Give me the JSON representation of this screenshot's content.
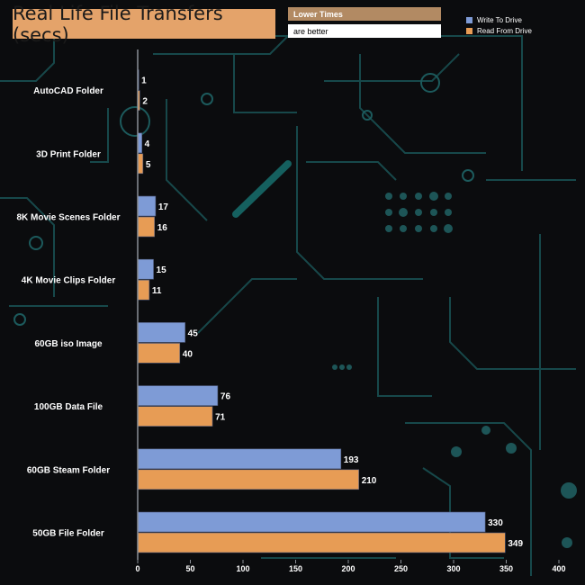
{
  "chart_data": {
    "type": "bar",
    "orientation": "horizontal",
    "title": "Real Life File Transfers (secs)",
    "notes": [
      "Lower Times",
      "are better"
    ],
    "categories": [
      "AutoCAD Folder",
      "3D Print Folder",
      "8K Movie Scenes Folder",
      "4K Movie Clips Folder",
      "60GB iso Image",
      "100GB Data File",
      "60GB Steam Folder",
      "50GB File Folder"
    ],
    "series": [
      {
        "name": "Write To  Drive",
        "color": "#7e9bd6",
        "values": [
          1,
          4,
          17,
          15,
          45,
          76,
          193,
          330
        ]
      },
      {
        "name": "Read From  Drive",
        "color": "#e79c55",
        "values": [
          2,
          5,
          16,
          11,
          40,
          71,
          210,
          349
        ]
      }
    ],
    "x_ticks": [
      "0",
      "50",
      "100",
      "150",
      "200",
      "250",
      "300",
      "350",
      "400"
    ],
    "xlim": [
      0,
      400
    ],
    "legend_position": "top-right",
    "grid": false
  }
}
